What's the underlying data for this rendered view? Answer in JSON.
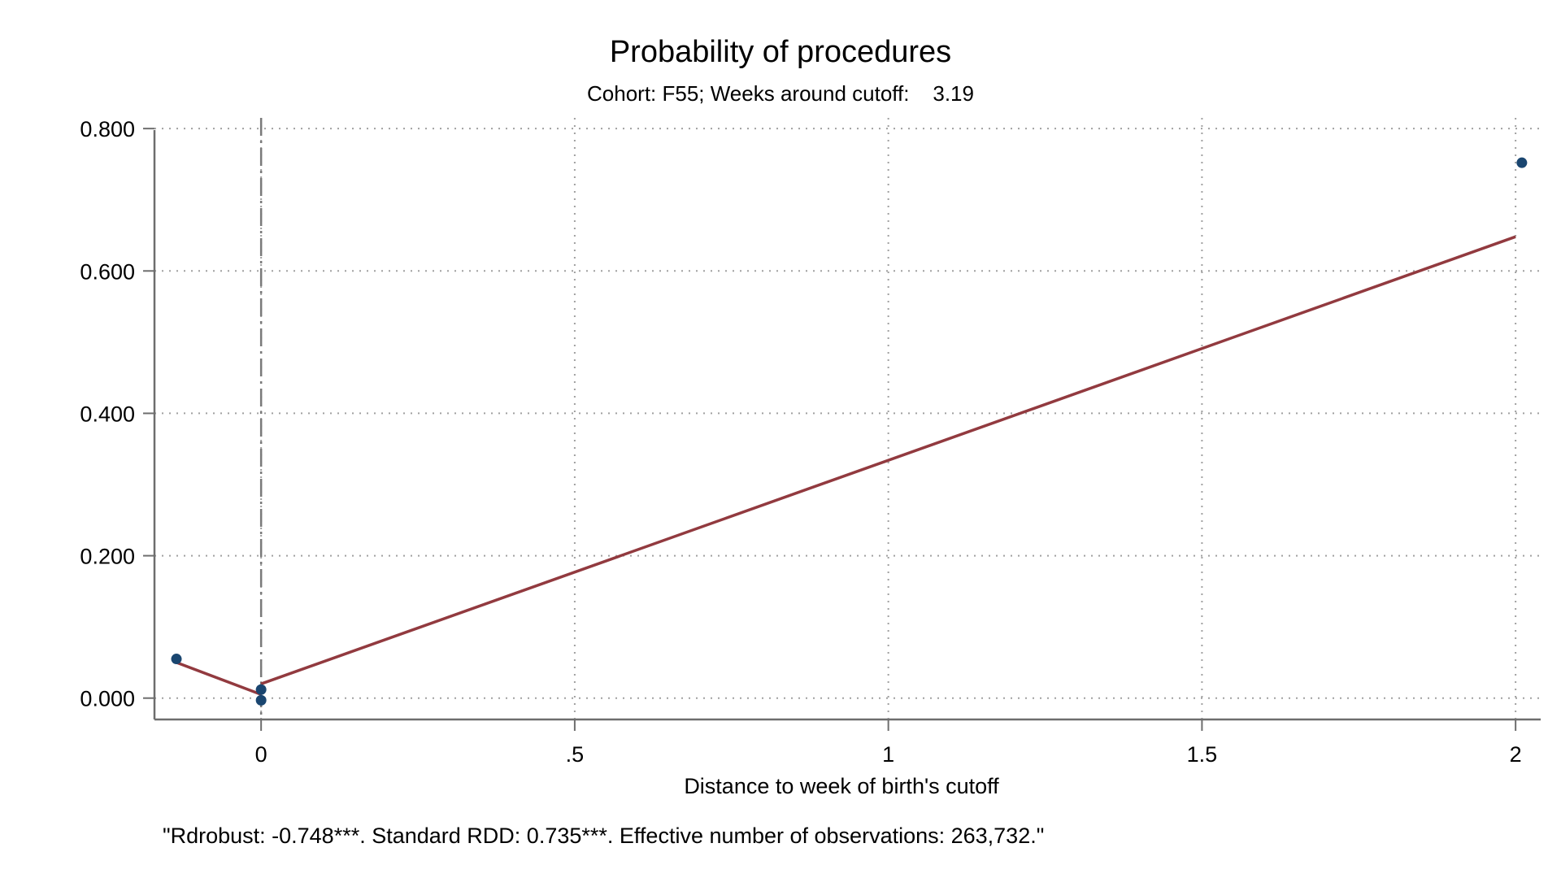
{
  "chart_data": {
    "type": "scatter",
    "title": "Probability of procedures",
    "subtitle": "Cohort: F55; Weeks around cutoff:    3.19",
    "xlabel": "Distance to week of birth's cutoff",
    "ylabel": "",
    "note": "\"Rdrobust: -0.748***. Standard RDD: 0.735***. Effective number of observations: 263,732.\"",
    "xlim": [
      -0.17,
      2.04
    ],
    "ylim": [
      -0.03,
      0.815
    ],
    "x_ticks": [
      {
        "value": 0,
        "label": "0"
      },
      {
        "value": 0.5,
        "label": ".5"
      },
      {
        "value": 1,
        "label": "1"
      },
      {
        "value": 1.5,
        "label": "1.5"
      },
      {
        "value": 2,
        "label": "2"
      }
    ],
    "y_ticks": [
      {
        "value": 0,
        "label": "0.000"
      },
      {
        "value": 0.2,
        "label": "0.200"
      },
      {
        "value": 0.4,
        "label": "0.400"
      },
      {
        "value": 0.6,
        "label": "0.600"
      },
      {
        "value": 0.8,
        "label": "0.800"
      }
    ],
    "grid": true,
    "cutoff_x": 0,
    "points": [
      {
        "x": -0.135,
        "y": 0.055
      },
      {
        "x": 0.0,
        "y": 0.012
      },
      {
        "x": 0.0,
        "y": -0.003
      },
      {
        "x": 2.01,
        "y": 0.752
      }
    ],
    "fit_lines": [
      {
        "x": [
          -0.135,
          0.0
        ],
        "y": [
          0.05,
          0.005
        ]
      },
      {
        "x": [
          0.0,
          2.0
        ],
        "y": [
          0.02,
          0.648
        ]
      }
    ],
    "colors": {
      "points": "#1a4670",
      "fit": "#923a3f",
      "axis": "#6e6e6e",
      "grid": "#a0a0a0",
      "cutoff": "#7a7a7a"
    }
  }
}
